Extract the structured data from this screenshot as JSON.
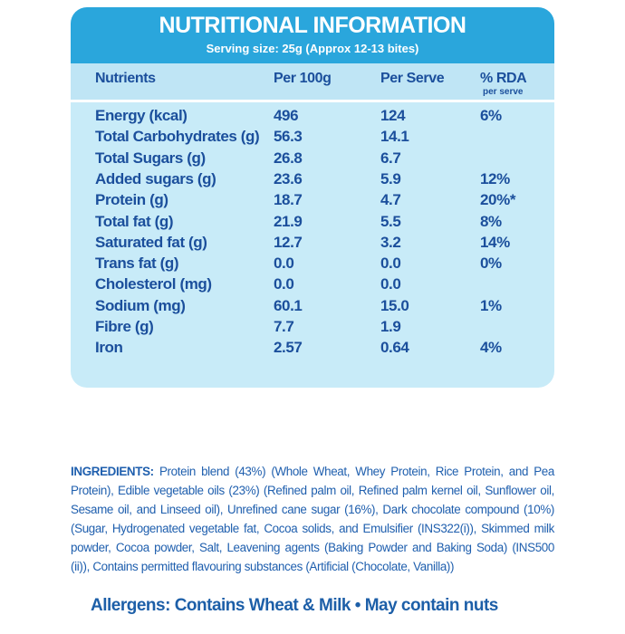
{
  "header": {
    "title": "NUTRITIONAL INFORMATION",
    "serving": "Serving size: 25g (Approx 12-13 bites)"
  },
  "table": {
    "columns": [
      "Nutrients",
      "Per 100g",
      "Per Serve",
      "% RDA"
    ],
    "rda_note": "per serve",
    "rows": [
      [
        "Energy (kcal)",
        "496",
        "124",
        "6%"
      ],
      [
        "Total Carbohydrates (g)",
        "56.3",
        "14.1"
      ],
      [
        "Total Sugars (g)",
        "26.8",
        "6.7"
      ],
      [
        "Added sugars (g)",
        "23.6",
        "5.9",
        "12%"
      ],
      [
        "Protein (g)",
        "18.7",
        "4.7",
        "20%*"
      ],
      [
        "Total fat (g)",
        "21.9",
        "5.5",
        "8%"
      ],
      [
        "Saturated fat (g)",
        "12.7",
        "3.2",
        "14%"
      ],
      [
        "Trans fat (g)",
        "0.0",
        "0.0",
        "0%"
      ],
      [
        "Cholesterol (mg)",
        "0.0",
        "0.0"
      ],
      [
        "Sodium (mg)",
        "60.1",
        "15.0",
        "1%"
      ],
      [
        "Fibre (g)",
        "7.7",
        "1.9"
      ],
      [
        "Iron",
        "2.57",
        "0.64",
        "4%"
      ]
    ]
  },
  "ingredients": {
    "label": "INGREDIENTS:",
    "text": "Protein blend (43%) (Whole Wheat, Whey Protein, Rice Protein, and Pea Protein), Edible vegetable oils (23%) (Refined palm oil, Refined palm kernel oil, Sunflower oil, Sesame oil, and Linseed oil), Unrefined cane sugar (16%), Dark chocolate compound (10%) (Sugar, Hydrogenated vegetable fat, Cocoa solids, and Emulsifier (INS322(i)), Skimmed milk powder, Cocoa powder, Salt, Leavening agents (Baking Powder and Baking Soda) (INS500 (ii)), Contains permitted flavouring substances (Artificial (Chocolate, Vanilla))"
  },
  "allergens": "Allergens: Contains Wheat & Milk • May contain nuts"
}
